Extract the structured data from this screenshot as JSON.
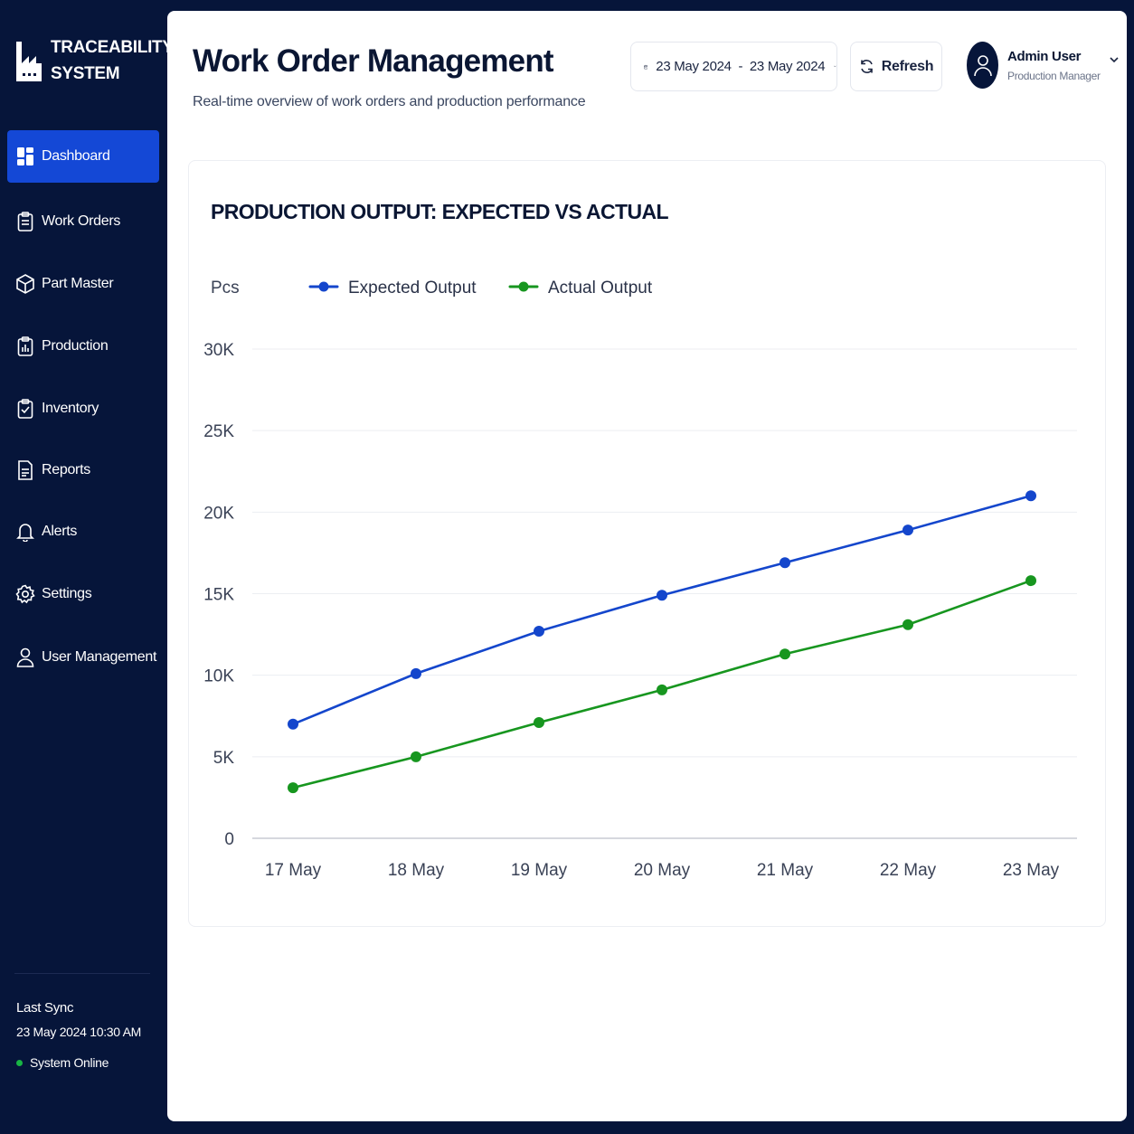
{
  "app": {
    "brand_line1": "TRACEABILITY",
    "brand_line2": "SYSTEM"
  },
  "sidebar": {
    "items": [
      {
        "label": "Dashboard",
        "icon": "dashboard-icon",
        "active": true
      },
      {
        "label": "Work Orders",
        "icon": "clipboard-icon"
      },
      {
        "label": "Part Master",
        "icon": "box-icon"
      },
      {
        "label": "Production",
        "icon": "bar-chart-icon"
      },
      {
        "label": "Inventory",
        "icon": "clipboard-check-icon"
      },
      {
        "label": "Reports",
        "icon": "document-icon"
      },
      {
        "label": "Alerts",
        "icon": "bell-icon"
      },
      {
        "label": "Settings",
        "icon": "gear-icon"
      },
      {
        "label": "User Management",
        "icon": "user-icon"
      }
    ],
    "sync_label": "Last Sync",
    "sync_time": "23 May 2024 10:30 AM",
    "status": "System Online",
    "status_color": "#18b544"
  },
  "header": {
    "title": "Work Order Management",
    "subtitle": "Real-time overview of work orders and production performance",
    "date_range": "23 May 2024  -  23 May 2024",
    "refresh_label": "Refresh",
    "user_name": "Admin User",
    "user_role": "Production Manager"
  },
  "colors": {
    "accent": "#1448d6",
    "sidebar_bg": "#06153a",
    "expected": "#1446cc",
    "actual": "#17961f"
  },
  "chart_data": {
    "type": "line",
    "title": "PRODUCTION OUTPUT: EXPECTED VS ACTUAL",
    "ylabel": "Pcs",
    "xlabel": "",
    "categories": [
      "17 May",
      "18 May",
      "19 May",
      "20 May",
      "21 May",
      "22 May",
      "23 May"
    ],
    "series": [
      {
        "name": "Expected Output",
        "color": "#1446cc",
        "values": [
          7000,
          10100,
          12700,
          14900,
          16900,
          18900,
          21000
        ]
      },
      {
        "name": "Actual Output",
        "color": "#17961f",
        "values": [
          3100,
          5000,
          7100,
          9100,
          11300,
          13100,
          15800
        ]
      }
    ],
    "ylim": [
      0,
      30000
    ],
    "yticks": [
      0,
      5000,
      10000,
      15000,
      20000,
      25000,
      30000
    ],
    "ytick_labels": [
      "0",
      "5K",
      "10K",
      "15K",
      "20K",
      "25K",
      "30K"
    ],
    "grid": true,
    "legend_position": "top-left"
  }
}
